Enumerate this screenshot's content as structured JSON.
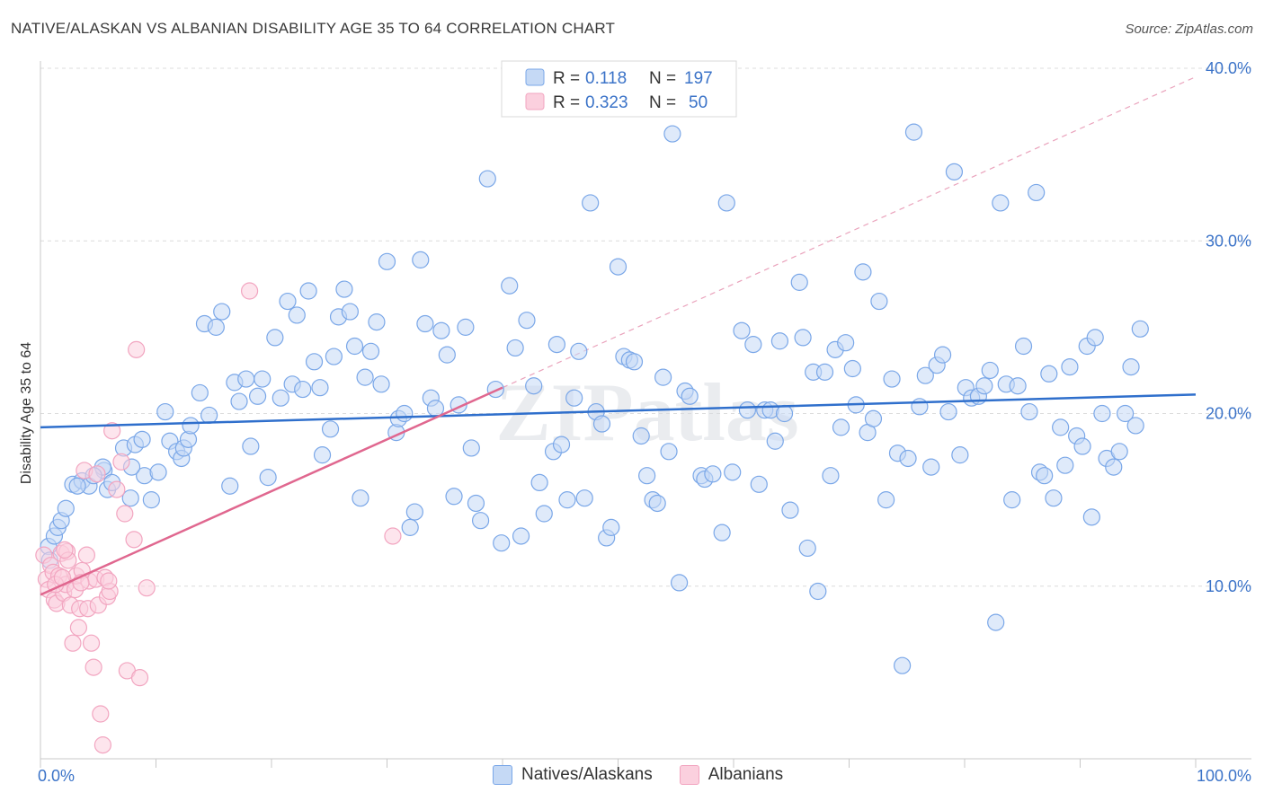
{
  "title": "NATIVE/ALASKAN VS ALBANIAN DISABILITY AGE 35 TO 64 CORRELATION CHART",
  "source": "Source: ZipAtlas.com",
  "watermark": "ZIPatlas",
  "chart_data": {
    "type": "scatter",
    "ylabel": "Disability Age 35 to 64",
    "xlim": [
      0,
      100
    ],
    "ylim": [
      0,
      40
    ],
    "x_tick_labels": [
      "0.0%",
      "100.0%"
    ],
    "y_ticks": [
      10,
      20,
      30,
      40
    ],
    "y_tick_labels": [
      "10.0%",
      "20.0%",
      "30.0%",
      "40.0%"
    ],
    "grid": true,
    "legend": {
      "placement": "top-center",
      "rows": [
        {
          "r_label": "R =",
          "r_value": "0.118",
          "n_label": "N =",
          "n_value": "197"
        },
        {
          "r_label": "R =",
          "r_value": "0.323",
          "n_label": "N =",
          "n_value": "50"
        }
      ]
    },
    "series": [
      {
        "name": "Natives/Alaskans",
        "color": "#7aa7e8",
        "line_color": "#2f6fcc",
        "trend": {
          "x": [
            0,
            100
          ],
          "y": [
            19.2,
            21.1
          ]
        },
        "points": [
          [
            0.7,
            12.3
          ],
          [
            0.8,
            11.5
          ],
          [
            1.2,
            12.9
          ],
          [
            1.5,
            13.4
          ],
          [
            1.8,
            13.8
          ],
          [
            2.2,
            14.5
          ],
          [
            2.8,
            15.9
          ],
          [
            3.6,
            16.1
          ],
          [
            4.2,
            15.8
          ],
          [
            5.5,
            16.7
          ],
          [
            5.8,
            15.6
          ],
          [
            6.2,
            16.0
          ],
          [
            3.2,
            15.8
          ],
          [
            7.2,
            18.0
          ],
          [
            7.8,
            15.1
          ],
          [
            8.2,
            18.2
          ],
          [
            8.8,
            18.5
          ],
          [
            9.0,
            16.4
          ],
          [
            9.6,
            15.0
          ],
          [
            10.2,
            16.6
          ],
          [
            10.8,
            20.1
          ],
          [
            11.2,
            18.4
          ],
          [
            11.8,
            17.8
          ],
          [
            12.2,
            17.4
          ],
          [
            12.4,
            18.0
          ],
          [
            12.8,
            18.5
          ],
          [
            13.0,
            19.3
          ],
          [
            13.8,
            21.2
          ],
          [
            14.2,
            25.2
          ],
          [
            14.6,
            19.9
          ],
          [
            15.2,
            25.0
          ],
          [
            15.7,
            25.9
          ],
          [
            16.4,
            15.8
          ],
          [
            16.8,
            21.8
          ],
          [
            17.2,
            20.7
          ],
          [
            17.8,
            22.0
          ],
          [
            18.2,
            18.1
          ],
          [
            18.8,
            21.0
          ],
          [
            19.2,
            22.0
          ],
          [
            19.7,
            16.3
          ],
          [
            20.3,
            24.4
          ],
          [
            20.8,
            20.9
          ],
          [
            21.4,
            26.5
          ],
          [
            21.8,
            21.7
          ],
          [
            22.2,
            25.7
          ],
          [
            22.7,
            21.4
          ],
          [
            23.2,
            27.1
          ],
          [
            23.7,
            23.0
          ],
          [
            24.2,
            21.5
          ],
          [
            24.4,
            17.6
          ],
          [
            25.1,
            19.1
          ],
          [
            25.4,
            23.3
          ],
          [
            25.8,
            25.6
          ],
          [
            26.3,
            27.2
          ],
          [
            26.8,
            25.9
          ],
          [
            27.2,
            23.9
          ],
          [
            27.7,
            15.1
          ],
          [
            28.1,
            22.1
          ],
          [
            28.6,
            23.6
          ],
          [
            29.1,
            25.3
          ],
          [
            29.5,
            21.7
          ],
          [
            30.0,
            28.8
          ],
          [
            30.8,
            18.9
          ],
          [
            31.0,
            19.7
          ],
          [
            31.5,
            20.0
          ],
          [
            32.0,
            13.4
          ],
          [
            32.4,
            14.3
          ],
          [
            32.9,
            28.9
          ],
          [
            33.3,
            25.2
          ],
          [
            33.8,
            20.9
          ],
          [
            34.2,
            20.3
          ],
          [
            34.7,
            24.8
          ],
          [
            35.2,
            23.4
          ],
          [
            35.8,
            15.2
          ],
          [
            36.2,
            20.5
          ],
          [
            36.8,
            25.0
          ],
          [
            37.3,
            18.0
          ],
          [
            37.7,
            14.8
          ],
          [
            38.1,
            13.8
          ],
          [
            38.7,
            33.6
          ],
          [
            39.4,
            21.4
          ],
          [
            39.9,
            12.5
          ],
          [
            40.6,
            27.4
          ],
          [
            41.1,
            23.8
          ],
          [
            41.6,
            12.9
          ],
          [
            42.1,
            25.4
          ],
          [
            42.7,
            21.6
          ],
          [
            43.2,
            16.0
          ],
          [
            43.6,
            14.2
          ],
          [
            44.4,
            17.8
          ],
          [
            44.7,
            24.0
          ],
          [
            45.1,
            18.2
          ],
          [
            45.6,
            15.0
          ],
          [
            46.2,
            20.9
          ],
          [
            46.6,
            23.6
          ],
          [
            47.1,
            15.1
          ],
          [
            47.6,
            32.2
          ],
          [
            48.1,
            20.1
          ],
          [
            48.6,
            19.4
          ],
          [
            49.0,
            12.8
          ],
          [
            49.4,
            13.4
          ],
          [
            50.0,
            28.5
          ],
          [
            50.5,
            23.3
          ],
          [
            51.0,
            23.1
          ],
          [
            51.4,
            23.0
          ],
          [
            52.0,
            18.7
          ],
          [
            52.5,
            16.4
          ],
          [
            53.0,
            15.0
          ],
          [
            53.4,
            14.8
          ],
          [
            53.9,
            22.1
          ],
          [
            54.4,
            17.8
          ],
          [
            54.7,
            36.2
          ],
          [
            55.3,
            10.2
          ],
          [
            55.8,
            21.3
          ],
          [
            56.2,
            21.0
          ],
          [
            57.2,
            16.4
          ],
          [
            57.5,
            16.2
          ],
          [
            58.2,
            16.5
          ],
          [
            59.0,
            13.1
          ],
          [
            59.4,
            32.2
          ],
          [
            59.9,
            16.6
          ],
          [
            60.7,
            24.8
          ],
          [
            61.2,
            20.2
          ],
          [
            61.7,
            24.0
          ],
          [
            62.2,
            15.9
          ],
          [
            62.7,
            20.2
          ],
          [
            63.2,
            20.2
          ],
          [
            63.6,
            18.4
          ],
          [
            64.0,
            24.2
          ],
          [
            64.4,
            20.0
          ],
          [
            64.9,
            14.4
          ],
          [
            65.7,
            27.6
          ],
          [
            66.0,
            24.4
          ],
          [
            66.4,
            12.2
          ],
          [
            66.9,
            22.4
          ],
          [
            67.3,
            9.7
          ],
          [
            67.9,
            22.4
          ],
          [
            68.4,
            16.4
          ],
          [
            68.8,
            23.7
          ],
          [
            69.3,
            19.2
          ],
          [
            69.7,
            24.1
          ],
          [
            70.3,
            22.6
          ],
          [
            70.6,
            20.5
          ],
          [
            71.2,
            28.2
          ],
          [
            71.6,
            18.9
          ],
          [
            72.1,
            19.7
          ],
          [
            72.6,
            26.5
          ],
          [
            73.2,
            15.0
          ],
          [
            73.7,
            22.0
          ],
          [
            74.2,
            17.7
          ],
          [
            74.6,
            5.4
          ],
          [
            75.1,
            17.4
          ],
          [
            75.6,
            36.3
          ],
          [
            76.1,
            20.4
          ],
          [
            76.6,
            22.2
          ],
          [
            77.1,
            16.9
          ],
          [
            77.6,
            22.8
          ],
          [
            78.1,
            23.4
          ],
          [
            78.6,
            20.1
          ],
          [
            79.1,
            34.0
          ],
          [
            79.6,
            17.6
          ],
          [
            80.1,
            21.5
          ],
          [
            80.6,
            20.9
          ],
          [
            81.2,
            21.0
          ],
          [
            81.7,
            21.6
          ],
          [
            82.2,
            22.5
          ],
          [
            82.7,
            7.9
          ],
          [
            83.1,
            32.2
          ],
          [
            83.6,
            21.7
          ],
          [
            84.1,
            15.0
          ],
          [
            84.6,
            21.6
          ],
          [
            85.1,
            23.9
          ],
          [
            85.6,
            20.1
          ],
          [
            86.2,
            32.8
          ],
          [
            86.5,
            16.6
          ],
          [
            86.9,
            16.4
          ],
          [
            87.3,
            22.3
          ],
          [
            87.7,
            15.1
          ],
          [
            88.3,
            19.2
          ],
          [
            88.7,
            17.0
          ],
          [
            89.1,
            22.7
          ],
          [
            89.7,
            18.7
          ],
          [
            90.2,
            18.1
          ],
          [
            90.6,
            23.9
          ],
          [
            91.0,
            14.0
          ],
          [
            91.3,
            24.4
          ],
          [
            91.9,
            20.0
          ],
          [
            92.3,
            17.4
          ],
          [
            92.9,
            16.9
          ],
          [
            93.4,
            17.8
          ],
          [
            93.9,
            20.0
          ],
          [
            94.4,
            22.7
          ],
          [
            94.8,
            19.3
          ],
          [
            95.2,
            24.9
          ],
          [
            5.4,
            16.9
          ],
          [
            7.9,
            16.9
          ],
          [
            4.6,
            16.4
          ]
        ]
      },
      {
        "name": "Albanians",
        "color": "#f2a5c0",
        "line_color": "#e0678f",
        "trend": {
          "x": [
            0,
            40
          ],
          "y": [
            9.5,
            21.5
          ]
        },
        "points": [
          [
            0.3,
            11.8
          ],
          [
            0.5,
            10.4
          ],
          [
            0.7,
            9.8
          ],
          [
            0.9,
            11.2
          ],
          [
            1.1,
            10.8
          ],
          [
            1.2,
            9.2
          ],
          [
            1.4,
            9.0
          ],
          [
            1.6,
            10.6
          ],
          [
            1.8,
            11.9
          ],
          [
            2.0,
            9.6
          ],
          [
            2.2,
            10.1
          ],
          [
            2.3,
            12.0
          ],
          [
            2.4,
            11.5
          ],
          [
            2.6,
            8.9
          ],
          [
            2.8,
            6.7
          ],
          [
            3.0,
            9.8
          ],
          [
            3.1,
            10.6
          ],
          [
            3.3,
            7.6
          ],
          [
            3.4,
            8.7
          ],
          [
            3.6,
            10.9
          ],
          [
            3.8,
            16.7
          ],
          [
            4.0,
            11.8
          ],
          [
            4.1,
            8.7
          ],
          [
            4.2,
            10.3
          ],
          [
            4.4,
            6.7
          ],
          [
            4.6,
            5.3
          ],
          [
            4.8,
            10.4
          ],
          [
            5.0,
            8.9
          ],
          [
            5.2,
            2.6
          ],
          [
            5.4,
            0.8
          ],
          [
            5.6,
            10.5
          ],
          [
            5.8,
            9.4
          ],
          [
            6.0,
            9.7
          ],
          [
            6.2,
            19.0
          ],
          [
            6.6,
            15.6
          ],
          [
            7.0,
            17.2
          ],
          [
            7.3,
            14.2
          ],
          [
            7.5,
            5.1
          ],
          [
            8.1,
            12.7
          ],
          [
            8.6,
            4.7
          ],
          [
            9.2,
            9.9
          ],
          [
            8.3,
            23.7
          ],
          [
            18.1,
            27.1
          ],
          [
            30.5,
            12.9
          ],
          [
            4.9,
            16.5
          ],
          [
            1.3,
            10.1
          ],
          [
            2.1,
            12.1
          ],
          [
            3.5,
            10.2
          ],
          [
            5.9,
            10.3
          ],
          [
            1.9,
            10.5
          ]
        ]
      }
    ]
  }
}
